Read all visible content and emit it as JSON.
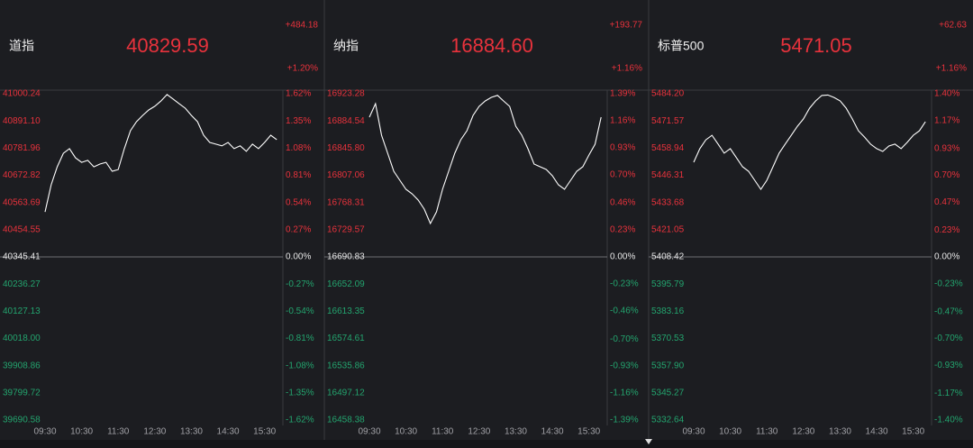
{
  "colors": {
    "background": "#1c1d21",
    "up": "#e8323c",
    "down": "#23a46e",
    "flat": "#e6e6e6",
    "line": "#ffffff",
    "grid": "#3a3b40"
  },
  "chart_data": [
    {
      "type": "line",
      "title": "道指",
      "last": "40829.59",
      "change": "+484.18",
      "change_pct": "+1.20%",
      "x": [
        "09:30",
        "09:40",
        "09:50",
        "10:00",
        "10:10",
        "10:20",
        "10:30",
        "10:40",
        "10:50",
        "11:00",
        "11:10",
        "11:20",
        "11:30",
        "11:40",
        "11:50",
        "12:00",
        "12:10",
        "12:20",
        "12:30",
        "12:40",
        "12:50",
        "13:00",
        "13:10",
        "13:20",
        "13:30",
        "13:40",
        "13:50",
        "14:00",
        "14:10",
        "14:20",
        "14:30",
        "14:40",
        "14:50",
        "15:00",
        "15:10",
        "15:20",
        "15:30",
        "15:40",
        "15:50",
        "16:00"
      ],
      "values": [
        40526,
        40635,
        40707,
        40761,
        40780,
        40743,
        40725,
        40733,
        40707,
        40718,
        40725,
        40689,
        40696,
        40780,
        40852,
        40888,
        40913,
        40935,
        40950,
        40971,
        40997,
        40979,
        40960,
        40942,
        40913,
        40888,
        40834,
        40805,
        40798,
        40791,
        40805,
        40780,
        40791,
        40769,
        40798,
        40780,
        40805,
        40834,
        40816,
        null
      ],
      "ylim": [
        39690.58,
        41000.24
      ],
      "yticks": [
        41000.24,
        {
          "value": 40891.1,
          "label": "40891.10"
        },
        40781.96,
        40672.82,
        40563.69,
        40454.55,
        40345.41,
        40236.27,
        40127.13,
        {
          "value": 40018,
          "label": "40018.00"
        },
        39908.86,
        39799.72,
        39690.58
      ],
      "y2lim": [
        -1.62,
        1.62
      ],
      "y2ticks": [
        {
          "value": 1.62,
          "label": "1.62%"
        },
        {
          "value": 1.35,
          "label": "1.35%"
        },
        {
          "value": 1.08,
          "label": "1.08%"
        },
        {
          "value": 0.81,
          "label": "0.81%"
        },
        {
          "value": 0.54,
          "label": "0.54%"
        },
        {
          "value": 0.27,
          "label": "0.27%"
        },
        {
          "value": 0,
          "label": "0.00%"
        },
        {
          "value": -0.27,
          "label": "-0.27%"
        },
        {
          "value": -0.54,
          "label": "-0.54%"
        },
        {
          "value": -0.81,
          "label": "-0.81%"
        },
        {
          "value": -1.08,
          "label": "-1.08%"
        },
        {
          "value": -1.35,
          "label": "-1.35%"
        },
        {
          "value": -1.62,
          "label": "-1.62%"
        }
      ]
    },
    {
      "type": "line",
      "title": "纳指",
      "last": "16884.60",
      "change": "+193.77",
      "change_pct": "+1.16%",
      "x": [
        "09:30",
        "09:40",
        "09:50",
        "10:00",
        "10:10",
        "10:20",
        "10:30",
        "10:40",
        "10:50",
        "11:00",
        "11:10",
        "11:20",
        "11:30",
        "11:40",
        "11:50",
        "12:00",
        "12:10",
        "12:20",
        "12:30",
        "12:40",
        "12:50",
        "13:00",
        "13:10",
        "13:20",
        "13:30",
        "13:40",
        "13:50",
        "14:00",
        "14:10",
        "14:20",
        "14:30",
        "14:40",
        "14:50",
        "15:00",
        "15:10",
        "15:20",
        "15:30",
        "15:40",
        "15:50",
        "16:00"
      ],
      "values": [
        16889.9,
        16909.2,
        16864.2,
        16838.5,
        16812.8,
        16800.0,
        16787.1,
        16780.7,
        16771.7,
        16758.9,
        16738.3,
        16755.0,
        16787.1,
        16812.8,
        16838.5,
        16857.8,
        16870.6,
        16892.5,
        16905.3,
        16913.0,
        16918.1,
        16921.0,
        16913.0,
        16905.3,
        16877.0,
        16864.2,
        16845.0,
        16823.1,
        16819.2,
        16815.4,
        16806.4,
        16793.6,
        16787.1,
        16800.0,
        16812.8,
        16819.2,
        16836.0,
        16851.4,
        16889.9,
        null
      ],
      "ylim": [
        16458.38,
        16923.28
      ],
      "yticks": [
        16923.28,
        16884.54,
        {
          "value": 16845.8,
          "label": "16845.80"
        },
        16807.06,
        16768.31,
        16729.57,
        16690.83,
        16652.09,
        16613.35,
        16574.61,
        16535.86,
        16497.12,
        16458.38
      ],
      "y2lim": [
        -1.39,
        1.39
      ],
      "y2ticks": [
        {
          "value": 1.39,
          "label": "1.39%"
        },
        {
          "value": 1.16,
          "label": "1.16%"
        },
        {
          "value": 0.93,
          "label": "0.93%"
        },
        {
          "value": 0.7,
          "label": "0.70%"
        },
        {
          "value": 0.46,
          "label": "0.46%"
        },
        {
          "value": 0.23,
          "label": "0.23%"
        },
        {
          "value": 0,
          "label": "0.00%"
        },
        {
          "value": -0.23,
          "label": "-0.23%"
        },
        {
          "value": -0.46,
          "label": "-0.46%"
        },
        {
          "value": -0.7,
          "label": "-0.70%"
        },
        {
          "value": -0.93,
          "label": "-0.93%"
        },
        {
          "value": -1.16,
          "label": "-1.16%"
        },
        {
          "value": -1.39,
          "label": "-1.39%"
        }
      ]
    },
    {
      "type": "line",
      "title": "标普500",
      "last": "5471.05",
      "change": "+62.63",
      "change_pct": "+1.16%",
      "x": [
        "09:30",
        "09:40",
        "09:50",
        "10:00",
        "10:10",
        "10:20",
        "10:30",
        "10:40",
        "10:50",
        "11:00",
        "11:10",
        "11:20",
        "11:30",
        "11:40",
        "11:50",
        "12:00",
        "12:10",
        "12:20",
        "12:30",
        "12:40",
        "12:50",
        "13:00",
        "13:10",
        "13:20",
        "13:30",
        "13:40",
        "13:50",
        "14:00",
        "14:10",
        "14:20",
        "14:30",
        "14:40",
        "14:50",
        "15:00",
        "15:10",
        "15:20",
        "15:30",
        "15:40",
        "15:50",
        "16:00"
      ],
      "values": [
        5452.4,
        5458.7,
        5462.8,
        5464.9,
        5460.8,
        5456.6,
        5458.7,
        5454.5,
        5450.3,
        5448.2,
        5444.0,
        5439.8,
        5444.0,
        5450.3,
        5456.6,
        5460.8,
        5464.9,
        5469.1,
        5472.5,
        5477.5,
        5480.9,
        5483.4,
        5483.6,
        5482.5,
        5480.9,
        5477.5,
        5472.5,
        5467.0,
        5464.1,
        5460.8,
        5458.7,
        5457.4,
        5459.9,
        5460.8,
        5458.7,
        5461.6,
        5464.9,
        5467.0,
        5471.2,
        null
      ],
      "ylim": [
        5332.64,
        5484.2
      ],
      "yticks": [
        {
          "value": 5484.2,
          "label": "5484.20"
        },
        5471.57,
        5458.94,
        5446.31,
        5433.68,
        5421.05,
        5408.42,
        5395.79,
        5383.16,
        5370.53,
        {
          "value": 5357.9,
          "label": "5357.90"
        },
        5345.27,
        5332.64
      ],
      "y2lim": [
        -1.4,
        1.4
      ],
      "y2ticks": [
        {
          "value": 1.4,
          "label": "1.40%"
        },
        {
          "value": 1.17,
          "label": "1.17%"
        },
        {
          "value": 0.93,
          "label": "0.93%"
        },
        {
          "value": 0.7,
          "label": "0.70%"
        },
        {
          "value": 0.47,
          "label": "0.47%"
        },
        {
          "value": 0.23,
          "label": "0.23%"
        },
        {
          "value": 0,
          "label": "0.00%"
        },
        {
          "value": -0.23,
          "label": "-0.23%"
        },
        {
          "value": -0.47,
          "label": "-0.47%"
        },
        {
          "value": -0.7,
          "label": "-0.70%"
        },
        {
          "value": -0.93,
          "label": "-0.93%"
        },
        {
          "value": -1.17,
          "label": "-1.17%"
        },
        {
          "value": -1.4,
          "label": "-1.40%"
        }
      ]
    }
  ]
}
